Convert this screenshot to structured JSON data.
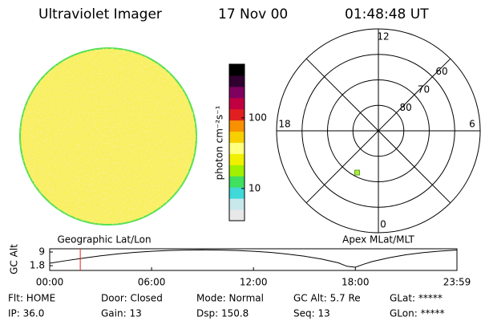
{
  "header": {
    "title": "Ultraviolet Imager",
    "date": "17 Nov 00",
    "time": "01:48:48 UT"
  },
  "image_panel": {
    "label": "Geographic Lat/Lon"
  },
  "colorbar": {
    "label": "photon cm⁻²s⁻¹",
    "log": true,
    "lim": [
      3.5,
      575
    ],
    "ticks": [
      10,
      100
    ],
    "colors": [
      "#e8e8e8",
      "#c8e8ec",
      "#40d8d8",
      "#40e060",
      "#a0f000",
      "#f0f000",
      "#ffff80",
      "#f8d000",
      "#f89000",
      "#e02020",
      "#c00040",
      "#800060",
      "#300030",
      "#000000"
    ]
  },
  "polar_panel": {
    "label": "Apex MLat/MLT",
    "lim": [
      90,
      50
    ],
    "rings": [
      80,
      70,
      60
    ],
    "mlt_labels": [
      {
        "value": 12,
        "label": "12"
      },
      {
        "value": 18,
        "label": "18"
      },
      {
        "value": 6,
        "label": "6"
      },
      {
        "value": 0,
        "label": "0"
      }
    ],
    "point": {
      "mlat": 71.6,
      "mlt": 22.2,
      "color": "#a8f040"
    }
  },
  "chart_data": {
    "type": "line",
    "ylabel": "GC Alt",
    "x": [
      0,
      60,
      120,
      180,
      240,
      300,
      360,
      420,
      480,
      540,
      600,
      660,
      720,
      780,
      840,
      900,
      960,
      1020,
      1050,
      1080,
      1110,
      1140,
      1200,
      1260,
      1320,
      1380,
      1439
    ],
    "values": [
      3.1,
      4.5,
      5.8,
      7.0,
      8.0,
      8.8,
      9.4,
      9.8,
      10.0,
      10.1,
      10.0,
      9.8,
      9.4,
      8.8,
      7.9,
      6.8,
      5.3,
      3.3,
      1.5,
      1.0,
      2.6,
      4.0,
      6.0,
      7.6,
      8.7,
      9.5,
      10.0
    ],
    "color": "#000000",
    "xlim": [
      0,
      1439
    ],
    "ylim": [
      -0.7,
      10.7
    ],
    "xticks": [
      {
        "value": 0,
        "label": "00:00"
      },
      {
        "value": 360,
        "label": "06:00"
      },
      {
        "value": 720,
        "label": "12:00"
      },
      {
        "value": 1080,
        "label": "18:00"
      },
      {
        "value": 1439,
        "label": "23:59"
      }
    ],
    "yticks": [
      1.8,
      9.0
    ],
    "marker": {
      "x": 108,
      "color": "#e02020"
    }
  },
  "status": [
    [
      "Flt: HOME",
      "IP: 36.0"
    ],
    [
      "Door: Closed",
      "Gain: 13"
    ],
    [
      "Mode: Normal",
      "Dsp: 150.8"
    ],
    [
      "GC Alt: 5.7 Re",
      "Seq: 13"
    ],
    [
      "GLat: *****",
      "GLon: *****"
    ]
  ]
}
